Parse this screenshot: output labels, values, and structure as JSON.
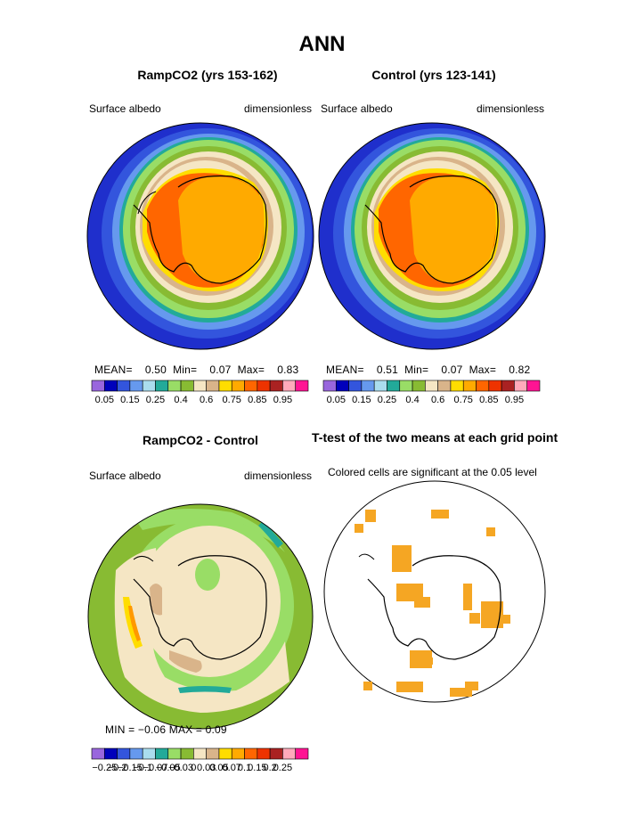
{
  "page_title": "ANN",
  "panels": [
    {
      "title": "RampCO2 (yrs 153-162)",
      "left_label": "Surface albedo",
      "right_label": "dimensionless",
      "stats": {
        "mean_label": "MEAN=",
        "mean": "0.50",
        "min_label": "Min=",
        "min": "0.07",
        "max_label": "Max=",
        "max": "0.83"
      }
    },
    {
      "title": "Control (yrs 123-141)",
      "left_label": "Surface albedo",
      "right_label": "dimensionless",
      "stats": {
        "mean_label": "MEAN=",
        "mean": "0.51",
        "min_label": "Min=",
        "min": "0.07",
        "max_label": "Max=",
        "max": "0.82"
      }
    },
    {
      "title": "RampCO2 - Control",
      "left_label": "Surface albedo",
      "right_label": "dimensionless",
      "stats_text": "MIN =   −0.06  MAX =     0.09"
    },
    {
      "title": "T-test of the two means at each grid point",
      "subtitle": "Colored cells are significant at the 0.05 level"
    }
  ],
  "colorbar_abs": {
    "colors": [
      "#9966dd",
      "#0000bb",
      "#3355dd",
      "#6699ee",
      "#aaddee",
      "#22aa99",
      "#99dd66",
      "#88bb33",
      "#f5e6c4",
      "#d9b48a",
      "#ffdd00",
      "#ffaa00",
      "#ff6600",
      "#ee3300",
      "#aa2222",
      "#ffaabb",
      "#ff1493"
    ],
    "labels": [
      "0.05",
      "0.15",
      "0.25",
      "0.4",
      "0.6",
      "0.75",
      "0.85",
      "0.95"
    ]
  },
  "colorbar_diff": {
    "colors": [
      "#9966dd",
      "#0000bb",
      "#3355dd",
      "#6699ee",
      "#aaddee",
      "#22aa99",
      "#99dd66",
      "#88bb33",
      "#f5e6c4",
      "#d9b48a",
      "#ffdd00",
      "#ffaa00",
      "#ff6600",
      "#ee3300",
      "#aa2222",
      "#ffaabb",
      "#ff1493"
    ],
    "labels": [
      "−0.25",
      "−0.2",
      "−0.15",
      "−0.1",
      "−0.07",
      "−0.05",
      "−0.03",
      "0",
      "0.03",
      "0.05",
      "0.07",
      "0.1",
      "0.15",
      "0.2",
      "0.25"
    ]
  },
  "map_colors": {
    "ocean_deep": "#2233cc",
    "ocean_mid": "#3355dd",
    "ocean_light": "#6699ee",
    "teal": "#22aa99",
    "green": "#88bb33",
    "light_green": "#99dd66",
    "cream": "#f5e6c4",
    "tan": "#d9b48a",
    "yellow": "#ffdd00",
    "orange": "#ffaa00",
    "red_orange": "#ff6600",
    "sig_orange": "#f5a623"
  }
}
